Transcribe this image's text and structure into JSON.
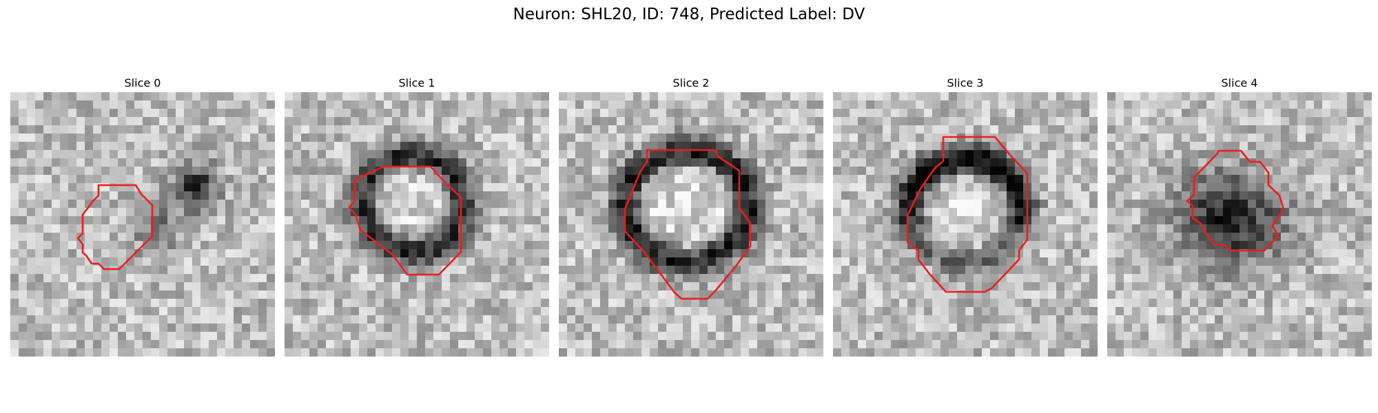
{
  "figure": {
    "title": "Neuron: SHL20, ID: 748, Predicted Label: DV"
  },
  "colors": {
    "contour": "#ee1c1c",
    "background": "#ffffff"
  },
  "panels": [
    {
      "title": "Slice 0"
    },
    {
      "title": "Slice 1"
    },
    {
      "title": "Slice 2"
    },
    {
      "title": "Slice 3"
    },
    {
      "title": "Slice 4"
    }
  ]
}
